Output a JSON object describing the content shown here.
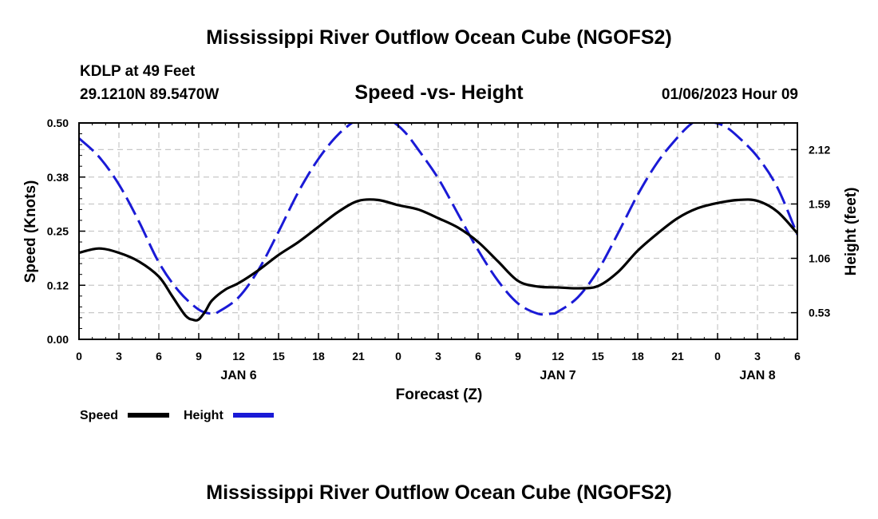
{
  "page": {
    "title_top": "Mississippi River Outflow Ocean Cube (NGOFS2)",
    "title_bottom": "Mississippi River Outflow Ocean Cube (NGOFS2)",
    "station": "KDLP at 49 Feet",
    "coords": "29.1210N  89.5470W",
    "subtitle": "Speed -vs- Height",
    "timestamp": "01/06/2023 Hour 09"
  },
  "chart_data": {
    "type": "line",
    "title": "Speed -vs- Height",
    "xlabel": "Forecast (Z)",
    "ylabel": "Speed (Knots)",
    "y2label": "Height (feet)",
    "x_range_hours": [
      0,
      54
    ],
    "ylim": [
      0,
      0.5
    ],
    "y2lim": [
      0.27,
      2.38
    ],
    "x_tick_labels": [
      "0",
      "3",
      "6",
      "9",
      "12",
      "15",
      "18",
      "21",
      "0",
      "3",
      "6",
      "9",
      "12",
      "15",
      "18",
      "21",
      "0",
      "3",
      "6"
    ],
    "y_tick_labels": [
      "0.00",
      "0.12",
      "0.25",
      "0.38",
      "0.50"
    ],
    "y_tick_values": [
      0,
      0.125,
      0.25,
      0.375,
      0.5
    ],
    "y2_tick_labels": [
      "0.53",
      "1.06",
      "1.59",
      "2.12"
    ],
    "y2_tick_values": [
      0.53,
      1.06,
      1.59,
      2.12
    ],
    "day_labels": [
      {
        "label": "JAN 6",
        "hour": 12
      },
      {
        "label": "JAN 7",
        "hour": 36
      },
      {
        "label": "JAN 8",
        "hour": 51
      }
    ],
    "grid": true,
    "legend_position": "bottom-left",
    "series": [
      {
        "name": "Speed",
        "axis": "left",
        "color": "#000000",
        "style": "solid",
        "x": [
          0,
          1.5,
          3,
          4.5,
          6,
          7,
          8,
          8.6,
          9,
          9.5,
          10,
          11,
          12,
          13.5,
          15,
          16.5,
          18,
          19.5,
          21,
          22.5,
          24,
          25.5,
          27,
          28.5,
          30,
          31.5,
          33,
          34.5,
          36,
          37.5,
          39,
          40.5,
          42,
          43.5,
          45,
          46.5,
          48,
          49.5,
          51,
          52.5,
          54
        ],
        "values": [
          0.2,
          0.21,
          0.2,
          0.18,
          0.145,
          0.1,
          0.055,
          0.045,
          0.046,
          0.065,
          0.09,
          0.115,
          0.13,
          0.16,
          0.195,
          0.225,
          0.26,
          0.295,
          0.32,
          0.322,
          0.31,
          0.3,
          0.28,
          0.258,
          0.225,
          0.18,
          0.135,
          0.122,
          0.12,
          0.118,
          0.123,
          0.155,
          0.205,
          0.245,
          0.28,
          0.303,
          0.315,
          0.322,
          0.32,
          0.295,
          0.245
        ]
      },
      {
        "name": "Height",
        "axis": "right",
        "color": "#1a1ad6",
        "style": "dashed",
        "x": [
          0,
          1.5,
          3,
          4.5,
          6,
          7.5,
          9,
          10,
          10.5,
          12,
          13.5,
          15,
          16.5,
          18,
          19.5,
          21,
          22,
          22.5,
          23.5,
          24.5,
          25.5,
          27,
          28.5,
          30,
          31.5,
          33,
          34.5,
          35.5,
          36,
          37.5,
          39,
          40.5,
          42,
          43.5,
          45,
          46,
          46.5,
          47.5,
          48.5,
          49.5,
          51,
          52.5,
          54
        ],
        "values": [
          2.23,
          2.05,
          1.78,
          1.42,
          1.02,
          0.74,
          0.56,
          0.52,
          0.54,
          0.68,
          0.95,
          1.32,
          1.71,
          2.03,
          2.27,
          2.42,
          2.45,
          2.45,
          2.4,
          2.29,
          2.12,
          1.84,
          1.49,
          1.14,
          0.84,
          0.62,
          0.52,
          0.52,
          0.54,
          0.68,
          0.94,
          1.3,
          1.68,
          2.0,
          2.24,
          2.37,
          2.39,
          2.39,
          2.35,
          2.25,
          2.05,
          1.75,
          1.29
        ]
      }
    ]
  }
}
